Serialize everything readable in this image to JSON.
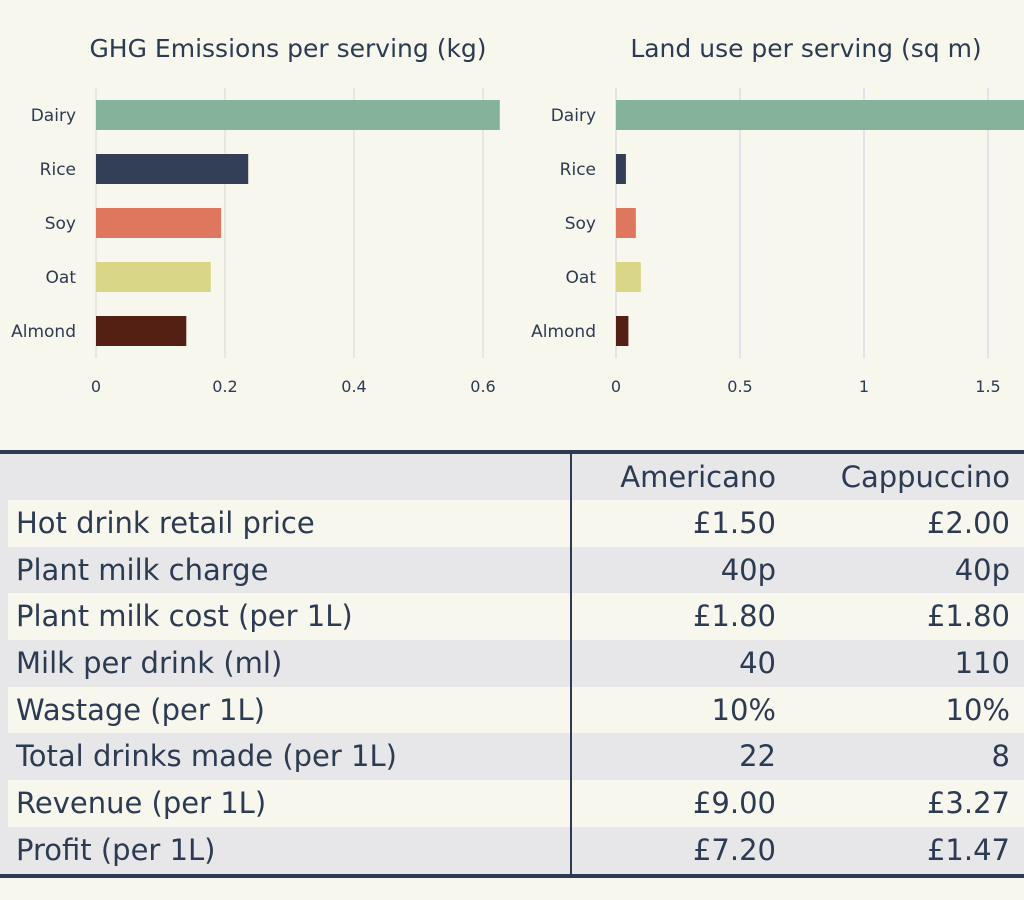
{
  "chart_data": [
    {
      "type": "bar",
      "orientation": "horizontal",
      "title": "GHG Emissions per serving (kg)",
      "categories": [
        "Dairy",
        "Rice",
        "Soy",
        "Oat",
        "Almond"
      ],
      "values": [
        0.626,
        0.236,
        0.194,
        0.178,
        0.14
      ],
      "colors": [
        "#84b39a",
        "#323f57",
        "#df775e",
        "#d9d685",
        "#552014"
      ],
      "xticks": [
        0,
        0.2,
        0.4,
        0.6
      ],
      "xtick_labels": [
        "0",
        "0.2",
        "0.4",
        "0.6"
      ],
      "xlim": [
        0,
        0.63
      ],
      "grid": true
    },
    {
      "type": "bar",
      "orientation": "horizontal",
      "title": "Land use per serving (sq m)",
      "categories": [
        "Dairy",
        "Rice",
        "Soy",
        "Oat",
        "Almond"
      ],
      "values": [
        1.65,
        0.04,
        0.08,
        0.1,
        0.05
      ],
      "colors": [
        "#84b39a",
        "#323f57",
        "#df775e",
        "#d9d685",
        "#552014"
      ],
      "xticks": [
        0,
        0.5,
        1,
        1.5
      ],
      "xtick_labels": [
        "0",
        "0.5",
        "1",
        "1.5"
      ],
      "xlim": [
        0,
        1.65
      ],
      "grid": true
    }
  ],
  "table": {
    "columns": [
      "Americano",
      "Cappuccino"
    ],
    "rows": [
      {
        "label": "Hot drink retail price",
        "values": [
          "£1.50",
          "£2.00"
        ]
      },
      {
        "label": "Plant milk charge",
        "values": [
          "40p",
          "40p"
        ]
      },
      {
        "label": "Plant milk cost (per 1L)",
        "values": [
          "£1.80",
          "£1.80"
        ]
      },
      {
        "label": "Milk per drink (ml)",
        "values": [
          "40",
          "110"
        ]
      },
      {
        "label": "Wastage (per 1L)",
        "values": [
          "10%",
          "10%"
        ]
      },
      {
        "label": "Total drinks made (per 1L)",
        "values": [
          "22",
          "8"
        ]
      },
      {
        "label": "Revenue (per 1L)",
        "values": [
          "£9.00",
          "£3.27"
        ]
      },
      {
        "label": "Profit (per 1L)",
        "values": [
          "£7.20",
          "£1.47"
        ]
      }
    ]
  }
}
